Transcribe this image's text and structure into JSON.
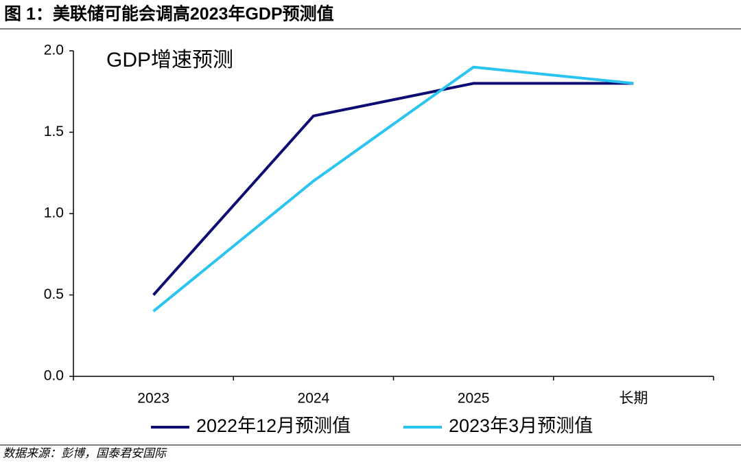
{
  "chart_data": {
    "type": "line",
    "title": "图 1：美联储可能会调高2023年GDP预测值",
    "annotation": "GDP增速预测",
    "source": "数据来源：彭博，国泰君安国际",
    "categories": [
      "2023",
      "2024",
      "2025",
      "长期"
    ],
    "series": [
      {
        "name": "2022年12月预测值",
        "color": "#0c0c72",
        "values": [
          0.5,
          1.6,
          1.8,
          1.8
        ]
      },
      {
        "name": "2023年3月预测值",
        "color": "#29c4ef",
        "values": [
          0.4,
          1.2,
          1.9,
          1.8
        ]
      }
    ],
    "ylim": [
      0,
      2
    ],
    "yticks": [
      {
        "value": 0,
        "label": "0.0"
      },
      0.5,
      {
        "value": 1,
        "label": "1.0"
      },
      1.5,
      {
        "value": 2,
        "label": "2.0"
      }
    ],
    "grid": false
  }
}
